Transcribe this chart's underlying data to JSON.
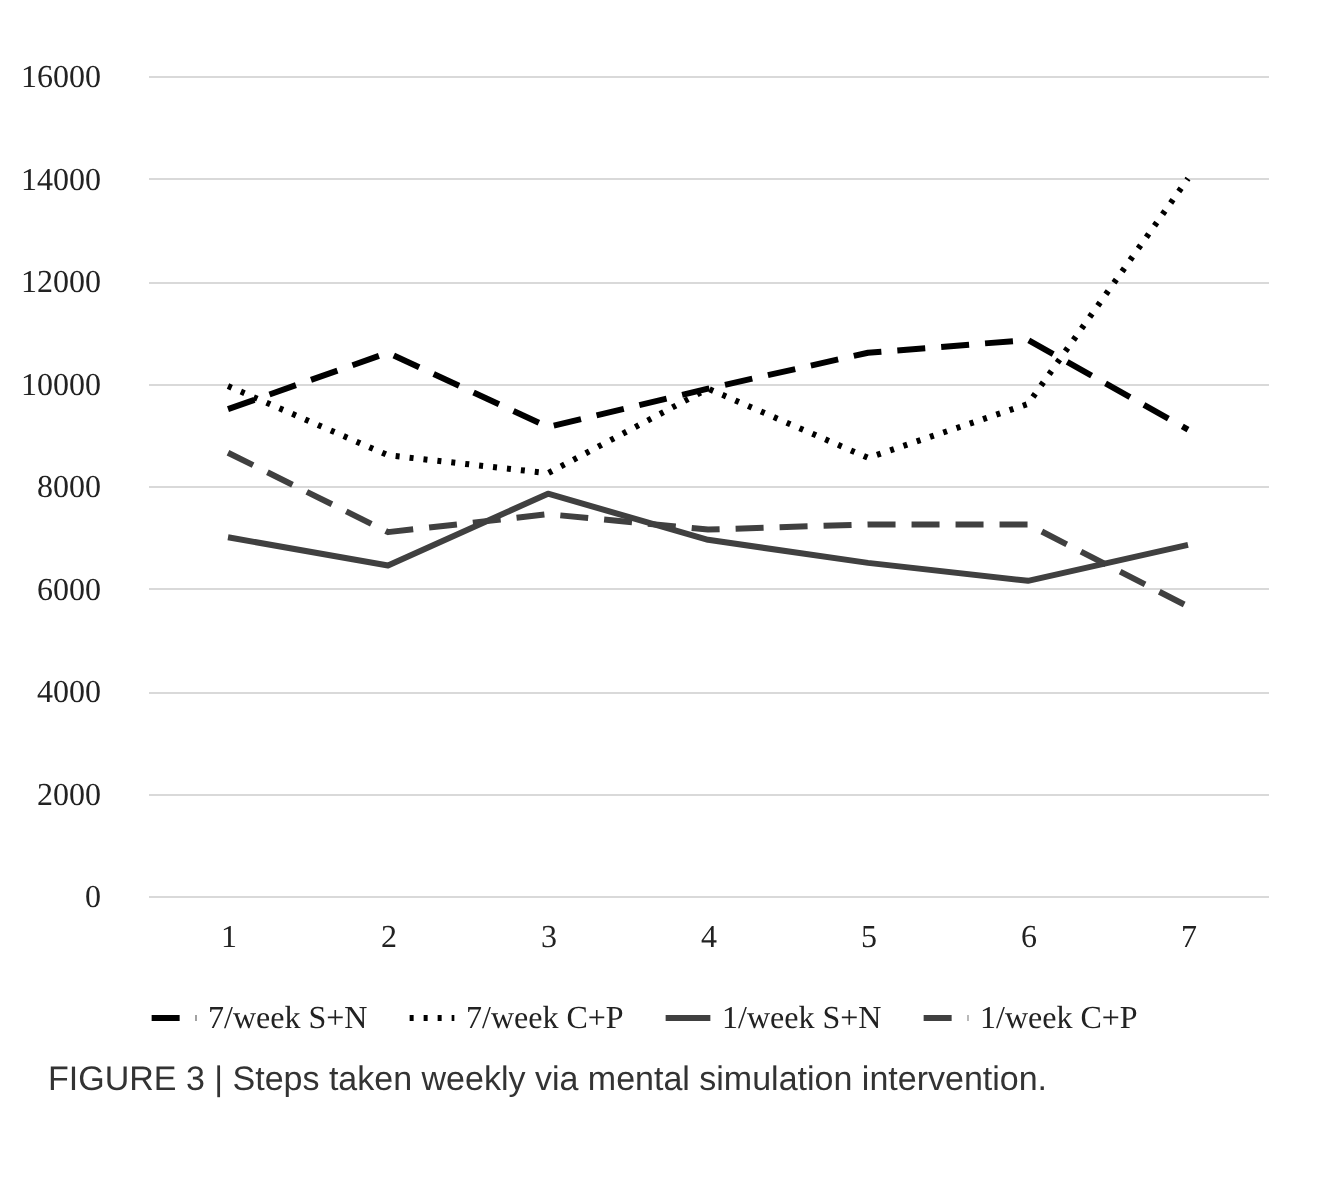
{
  "chart_data": {
    "type": "line",
    "categories": [
      "1",
      "2",
      "3",
      "4",
      "5",
      "6",
      "7"
    ],
    "series": [
      {
        "name": "7/week S+N",
        "color": "#000000",
        "line_style": "dashed",
        "values": [
          9500,
          10600,
          9150,
          9900,
          10600,
          10850,
          9100
        ]
      },
      {
        "name": "7/week C+P",
        "color": "#000000",
        "line_style": "dotted",
        "values": [
          9950,
          8600,
          8250,
          9900,
          8550,
          9600,
          14000
        ]
      },
      {
        "name": "1/week S+N",
        "color": "#404040",
        "line_style": "solid",
        "values": [
          7000,
          6450,
          7850,
          6950,
          6500,
          6150,
          6850
        ]
      },
      {
        "name": "1/week C+P",
        "color": "#404040",
        "line_style": "dashed",
        "values": [
          8650,
          7100,
          7450,
          7150,
          7250,
          7250,
          5650
        ]
      }
    ],
    "ylim": [
      0,
      16000
    ],
    "yticks": [
      0,
      2000,
      4000,
      6000,
      8000,
      10000,
      12000,
      14000,
      16000
    ],
    "grid": "y",
    "legend": "bottom",
    "marker": "none",
    "annotations": [
      "FIGURE 3 | Steps taken weekly via mental simulation intervention."
    ]
  }
}
